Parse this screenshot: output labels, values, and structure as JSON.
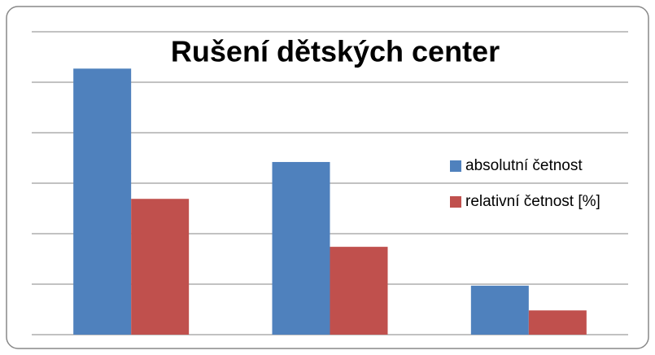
{
  "chart_data": {
    "type": "bar",
    "title": "Rušení dětských center",
    "categories": [
      null,
      null,
      null
    ],
    "series": [
      {
        "name": "absolutní četnost",
        "color": "#4f81bd",
        "values": [
          5.27,
          3.42,
          0.97
        ]
      },
      {
        "name": "relativní četnost [%]",
        "color": "#c0504d",
        "values": [
          2.69,
          1.74,
          0.48
        ]
      }
    ],
    "ylim": [
      0,
      6
    ],
    "yticks": [
      0,
      1,
      2,
      3,
      4,
      5,
      6
    ],
    "grid": true,
    "legend": "right"
  }
}
